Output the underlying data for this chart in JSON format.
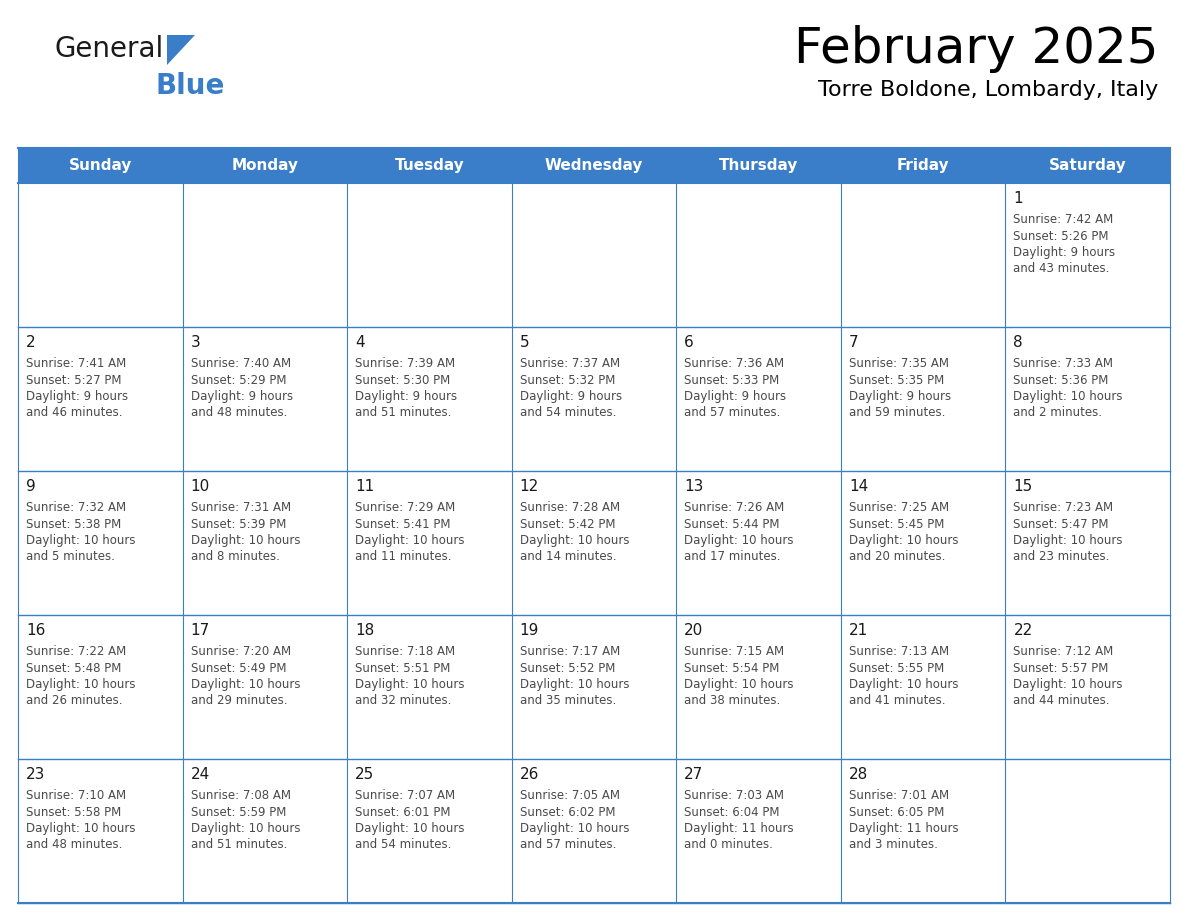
{
  "title": "February 2025",
  "subtitle": "Torre Boldone, Lombardy, Italy",
  "header_color": "#3A7DC9",
  "header_text_color": "#FFFFFF",
  "cell_bg_color": "#FFFFFF",
  "border_color": "#3A7DC9",
  "day_headers": [
    "Sunday",
    "Monday",
    "Tuesday",
    "Wednesday",
    "Thursday",
    "Friday",
    "Saturday"
  ],
  "days": [
    {
      "date": 1,
      "col": 6,
      "row": 0,
      "sunrise": "7:42 AM",
      "sunset": "5:26 PM",
      "daylight": "9 hours and 43 minutes."
    },
    {
      "date": 2,
      "col": 0,
      "row": 1,
      "sunrise": "7:41 AM",
      "sunset": "5:27 PM",
      "daylight": "9 hours and 46 minutes."
    },
    {
      "date": 3,
      "col": 1,
      "row": 1,
      "sunrise": "7:40 AM",
      "sunset": "5:29 PM",
      "daylight": "9 hours and 48 minutes."
    },
    {
      "date": 4,
      "col": 2,
      "row": 1,
      "sunrise": "7:39 AM",
      "sunset": "5:30 PM",
      "daylight": "9 hours and 51 minutes."
    },
    {
      "date": 5,
      "col": 3,
      "row": 1,
      "sunrise": "7:37 AM",
      "sunset": "5:32 PM",
      "daylight": "9 hours and 54 minutes."
    },
    {
      "date": 6,
      "col": 4,
      "row": 1,
      "sunrise": "7:36 AM",
      "sunset": "5:33 PM",
      "daylight": "9 hours and 57 minutes."
    },
    {
      "date": 7,
      "col": 5,
      "row": 1,
      "sunrise": "7:35 AM",
      "sunset": "5:35 PM",
      "daylight": "9 hours and 59 minutes."
    },
    {
      "date": 8,
      "col": 6,
      "row": 1,
      "sunrise": "7:33 AM",
      "sunset": "5:36 PM",
      "daylight": "10 hours and 2 minutes."
    },
    {
      "date": 9,
      "col": 0,
      "row": 2,
      "sunrise": "7:32 AM",
      "sunset": "5:38 PM",
      "daylight": "10 hours and 5 minutes."
    },
    {
      "date": 10,
      "col": 1,
      "row": 2,
      "sunrise": "7:31 AM",
      "sunset": "5:39 PM",
      "daylight": "10 hours and 8 minutes."
    },
    {
      "date": 11,
      "col": 2,
      "row": 2,
      "sunrise": "7:29 AM",
      "sunset": "5:41 PM",
      "daylight": "10 hours and 11 minutes."
    },
    {
      "date": 12,
      "col": 3,
      "row": 2,
      "sunrise": "7:28 AM",
      "sunset": "5:42 PM",
      "daylight": "10 hours and 14 minutes."
    },
    {
      "date": 13,
      "col": 4,
      "row": 2,
      "sunrise": "7:26 AM",
      "sunset": "5:44 PM",
      "daylight": "10 hours and 17 minutes."
    },
    {
      "date": 14,
      "col": 5,
      "row": 2,
      "sunrise": "7:25 AM",
      "sunset": "5:45 PM",
      "daylight": "10 hours and 20 minutes."
    },
    {
      "date": 15,
      "col": 6,
      "row": 2,
      "sunrise": "7:23 AM",
      "sunset": "5:47 PM",
      "daylight": "10 hours and 23 minutes."
    },
    {
      "date": 16,
      "col": 0,
      "row": 3,
      "sunrise": "7:22 AM",
      "sunset": "5:48 PM",
      "daylight": "10 hours and 26 minutes."
    },
    {
      "date": 17,
      "col": 1,
      "row": 3,
      "sunrise": "7:20 AM",
      "sunset": "5:49 PM",
      "daylight": "10 hours and 29 minutes."
    },
    {
      "date": 18,
      "col": 2,
      "row": 3,
      "sunrise": "7:18 AM",
      "sunset": "5:51 PM",
      "daylight": "10 hours and 32 minutes."
    },
    {
      "date": 19,
      "col": 3,
      "row": 3,
      "sunrise": "7:17 AM",
      "sunset": "5:52 PM",
      "daylight": "10 hours and 35 minutes."
    },
    {
      "date": 20,
      "col": 4,
      "row": 3,
      "sunrise": "7:15 AM",
      "sunset": "5:54 PM",
      "daylight": "10 hours and 38 minutes."
    },
    {
      "date": 21,
      "col": 5,
      "row": 3,
      "sunrise": "7:13 AM",
      "sunset": "5:55 PM",
      "daylight": "10 hours and 41 minutes."
    },
    {
      "date": 22,
      "col": 6,
      "row": 3,
      "sunrise": "7:12 AM",
      "sunset": "5:57 PM",
      "daylight": "10 hours and 44 minutes."
    },
    {
      "date": 23,
      "col": 0,
      "row": 4,
      "sunrise": "7:10 AM",
      "sunset": "5:58 PM",
      "daylight": "10 hours and 48 minutes."
    },
    {
      "date": 24,
      "col": 1,
      "row": 4,
      "sunrise": "7:08 AM",
      "sunset": "5:59 PM",
      "daylight": "10 hours and 51 minutes."
    },
    {
      "date": 25,
      "col": 2,
      "row": 4,
      "sunrise": "7:07 AM",
      "sunset": "6:01 PM",
      "daylight": "10 hours and 54 minutes."
    },
    {
      "date": 26,
      "col": 3,
      "row": 4,
      "sunrise": "7:05 AM",
      "sunset": "6:02 PM",
      "daylight": "10 hours and 57 minutes."
    },
    {
      "date": 27,
      "col": 4,
      "row": 4,
      "sunrise": "7:03 AM",
      "sunset": "6:04 PM",
      "daylight": "11 hours and 0 minutes."
    },
    {
      "date": 28,
      "col": 5,
      "row": 4,
      "sunrise": "7:01 AM",
      "sunset": "6:05 PM",
      "daylight": "11 hours and 3 minutes."
    }
  ],
  "num_rows": 5,
  "logo_general_color": "#1a1a1a",
  "logo_blue_color": "#3A7DC9",
  "date_color": "#1a1a1a",
  "info_text_color": "#4a4a4a",
  "title_fontsize": 36,
  "subtitle_fontsize": 16,
  "header_fontsize": 11,
  "date_fontsize": 11,
  "info_fontsize": 8.5
}
